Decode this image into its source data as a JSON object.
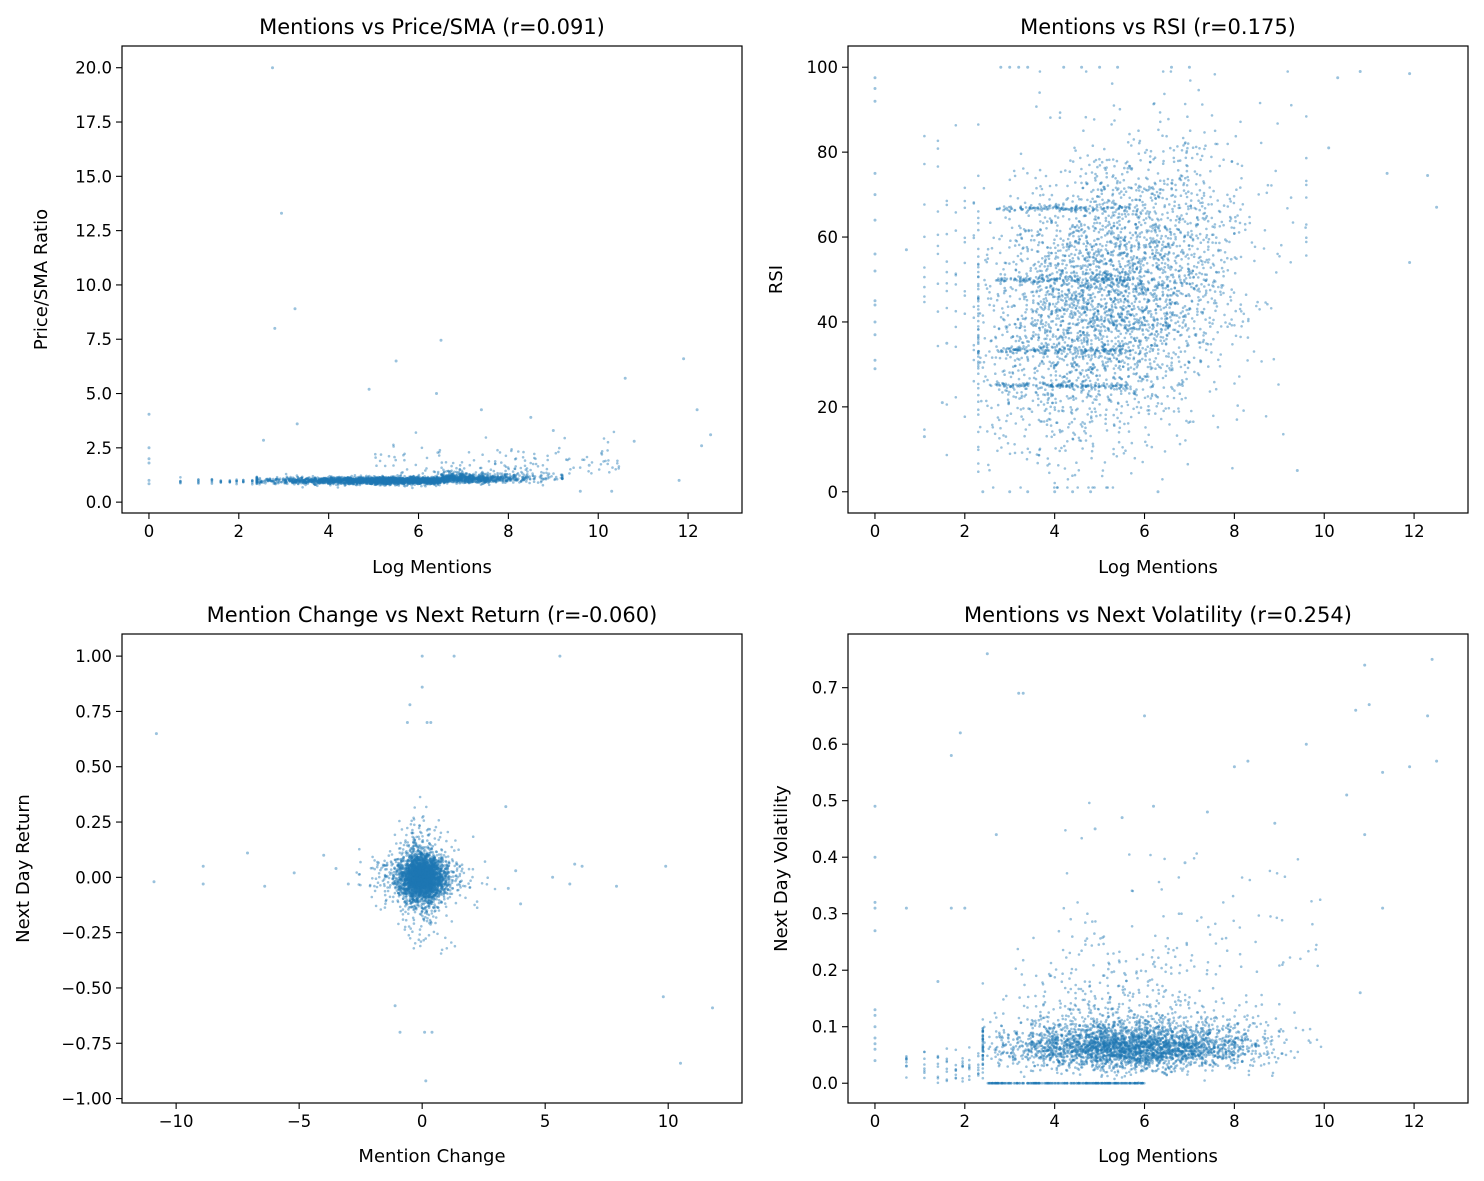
{
  "chart_data": [
    {
      "type": "scatter",
      "title": "Mentions vs Price/SMA (r=0.091)",
      "xlabel": "Log Mentions",
      "ylabel": "Price/SMA Ratio",
      "xlim": [
        -0.6,
        13.2
      ],
      "ylim": [
        -0.5,
        21.0
      ],
      "xticks": [
        0,
        2,
        4,
        6,
        8,
        10,
        12
      ],
      "yticks": [
        0.0,
        2.5,
        5.0,
        7.5,
        10.0,
        12.5,
        15.0,
        17.5,
        20.0
      ],
      "ytick_labels": [
        "0.0",
        "2.5",
        "5.0",
        "7.5",
        "10.0",
        "12.5",
        "15.0",
        "17.5",
        "20.0"
      ],
      "grid": false,
      "marker_color": "#1f77b4",
      "points": [
        [
          0,
          4.05
        ],
        [
          0,
          2.5
        ],
        [
          0,
          2.0
        ],
        [
          0,
          1.8
        ],
        [
          0,
          1.0
        ],
        [
          0,
          0.85
        ],
        [
          2.75,
          20.0
        ],
        [
          2.95,
          13.3
        ],
        [
          3.25,
          8.9
        ],
        [
          2.8,
          8.0
        ],
        [
          5.5,
          6.5
        ],
        [
          6.5,
          7.45
        ],
        [
          4.9,
          5.2
        ],
        [
          6.4,
          5.0
        ],
        [
          3.3,
          3.6
        ],
        [
          2.55,
          2.85
        ],
        [
          7.4,
          4.25
        ],
        [
          8.5,
          3.9
        ],
        [
          9.0,
          3.3
        ],
        [
          10.6,
          5.7
        ],
        [
          11.9,
          6.6
        ],
        [
          12.2,
          4.25
        ],
        [
          12.5,
          3.1
        ],
        [
          12.3,
          2.6
        ],
        [
          10.8,
          2.8
        ],
        [
          11.8,
          1.0
        ],
        [
          10.3,
          0.5
        ],
        [
          9.6,
          0.5
        ],
        [
          8.9,
          1.3
        ],
        [
          9.8,
          1.7
        ]
      ]
    },
    {
      "type": "scatter",
      "title": "Mentions vs RSI (r=0.175)",
      "xlabel": "Log Mentions",
      "ylabel": "RSI",
      "xlim": [
        -0.6,
        13.2
      ],
      "ylim": [
        -5,
        105
      ],
      "xticks": [
        0,
        2,
        4,
        6,
        8,
        10,
        12
      ],
      "yticks": [
        0,
        20,
        40,
        60,
        80,
        100
      ],
      "ytick_labels": [
        "0",
        "20",
        "40",
        "60",
        "80",
        "100"
      ],
      "grid": false,
      "marker_color": "#1f77b4",
      "points": [
        [
          0,
          97.5
        ],
        [
          0,
          95
        ],
        [
          0,
          92
        ],
        [
          0,
          75
        ],
        [
          0,
          70
        ],
        [
          0,
          64
        ],
        [
          0,
          56
        ],
        [
          0,
          52
        ],
        [
          0,
          45
        ],
        [
          0,
          44
        ],
        [
          0,
          40
        ],
        [
          0,
          37
        ],
        [
          0,
          31
        ],
        [
          0,
          29
        ],
        [
          2.8,
          100
        ],
        [
          3.0,
          100
        ],
        [
          3.2,
          100
        ],
        [
          3.4,
          100
        ],
        [
          4.2,
          100
        ],
        [
          4.6,
          100
        ],
        [
          5.0,
          100
        ],
        [
          5.4,
          100
        ],
        [
          6.6,
          100
        ],
        [
          7.0,
          100
        ],
        [
          3.0,
          0
        ],
        [
          3.4,
          0
        ],
        [
          4.0,
          0
        ],
        [
          4.4,
          0
        ],
        [
          4.8,
          0
        ],
        [
          2.4,
          0
        ],
        [
          6.3,
          0
        ],
        [
          9.4,
          5
        ],
        [
          10.1,
          81
        ],
        [
          11.9,
          98.5
        ],
        [
          12.5,
          67
        ],
        [
          12.3,
          74.5
        ],
        [
          11.4,
          75
        ],
        [
          10.8,
          99
        ],
        [
          10.3,
          97.5
        ],
        [
          11.9,
          54
        ],
        [
          1.6,
          35
        ],
        [
          1.1,
          13
        ],
        [
          1.5,
          21
        ],
        [
          0.7,
          57
        ]
      ]
    },
    {
      "type": "scatter",
      "title": "Mention Change vs Next Return (r=-0.060)",
      "xlabel": "Mention Change",
      "ylabel": "Next Day Return",
      "xlim": [
        -12.2,
        13.0
      ],
      "ylim": [
        -1.02,
        1.1
      ],
      "xticks": [
        -10,
        -5,
        0,
        5,
        10
      ],
      "xtick_labels": [
        "−10",
        "−5",
        "0",
        "5",
        "10"
      ],
      "yticks": [
        -1.0,
        -0.75,
        -0.5,
        -0.25,
        0.0,
        0.25,
        0.5,
        0.75,
        1.0
      ],
      "ytick_labels": [
        "−1.00",
        "−0.75",
        "−0.50",
        "−0.25",
        "0.00",
        "0.25",
        "0.50",
        "0.75",
        "1.00"
      ],
      "grid": false,
      "marker_color": "#1f77b4",
      "points": [
        [
          -10.8,
          0.65
        ],
        [
          -10.9,
          -0.02
        ],
        [
          -8.9,
          0.05
        ],
        [
          -8.9,
          -0.03
        ],
        [
          -7.1,
          0.11
        ],
        [
          -6.4,
          -0.04
        ],
        [
          -5.2,
          0.02
        ],
        [
          -4.0,
          0.1
        ],
        [
          -3.5,
          0.04
        ],
        [
          -3.0,
          -0.03
        ],
        [
          -1.1,
          -0.58
        ],
        [
          -0.9,
          -0.7
        ],
        [
          0.1,
          -0.7
        ],
        [
          0.4,
          -0.7
        ],
        [
          0.15,
          -0.92
        ],
        [
          0.0,
          1.0
        ],
        [
          1.3,
          1.0
        ],
        [
          5.6,
          1.0
        ],
        [
          0.0,
          0.86
        ],
        [
          -0.5,
          0.78
        ],
        [
          -0.6,
          0.7
        ],
        [
          0.2,
          0.7
        ],
        [
          0.35,
          0.7
        ],
        [
          6.2,
          0.06
        ],
        [
          6.5,
          0.05
        ],
        [
          5.3,
          0.0
        ],
        [
          6.0,
          -0.03
        ],
        [
          7.9,
          -0.04
        ],
        [
          9.9,
          0.05
        ],
        [
          9.8,
          -0.54
        ],
        [
          10.5,
          -0.84
        ],
        [
          11.8,
          -0.59
        ],
        [
          3.8,
          0.03
        ],
        [
          3.5,
          -0.05
        ],
        [
          4.0,
          -0.12
        ],
        [
          3.4,
          0.32
        ]
      ]
    },
    {
      "type": "scatter",
      "title": "Mentions vs Next Volatility (r=0.254)",
      "xlabel": "Log Mentions",
      "ylabel": "Next Day Volatility",
      "xlim": [
        -0.6,
        13.2
      ],
      "ylim": [
        -0.035,
        0.795
      ],
      "xticks": [
        0,
        2,
        4,
        6,
        8,
        10,
        12
      ],
      "yticks": [
        0.0,
        0.1,
        0.2,
        0.3,
        0.4,
        0.5,
        0.6,
        0.7
      ],
      "ytick_labels": [
        "0.0",
        "0.1",
        "0.2",
        "0.3",
        "0.4",
        "0.5",
        "0.6",
        "0.7"
      ],
      "grid": false,
      "marker_color": "#1f77b4",
      "points": [
        [
          0,
          0.49
        ],
        [
          0,
          0.4
        ],
        [
          0,
          0.32
        ],
        [
          0,
          0.31
        ],
        [
          0,
          0.27
        ],
        [
          0,
          0.13
        ],
        [
          0,
          0.12
        ],
        [
          0,
          0.1
        ],
        [
          0,
          0.08
        ],
        [
          0,
          0.07
        ],
        [
          0,
          0.06
        ],
        [
          0,
          0.04
        ],
        [
          0.7,
          0.31
        ],
        [
          0.7,
          0.03
        ],
        [
          1.4,
          0.18
        ],
        [
          1.7,
          0.58
        ],
        [
          1.9,
          0.62
        ],
        [
          1.7,
          0.31
        ],
        [
          2.0,
          0.31
        ],
        [
          2.5,
          0.76
        ],
        [
          3.2,
          0.69
        ],
        [
          3.3,
          0.69
        ],
        [
          2.7,
          0.44
        ],
        [
          6.0,
          0.65
        ],
        [
          10.7,
          0.66
        ],
        [
          10.9,
          0.74
        ],
        [
          11.0,
          0.67
        ],
        [
          12.4,
          0.75
        ],
        [
          12.5,
          0.57
        ],
        [
          12.3,
          0.65
        ],
        [
          11.9,
          0.56
        ],
        [
          11.3,
          0.55
        ],
        [
          10.9,
          0.44
        ],
        [
          10.5,
          0.51
        ],
        [
          9.6,
          0.6
        ],
        [
          8.9,
          0.46
        ],
        [
          8.0,
          0.56
        ],
        [
          8.3,
          0.57
        ],
        [
          7.4,
          0.48
        ],
        [
          6.9,
          0.39
        ],
        [
          5.5,
          0.47
        ],
        [
          4.9,
          0.45
        ],
        [
          6.2,
          0.49
        ],
        [
          11.3,
          0.31
        ],
        [
          10.8,
          0.16
        ]
      ]
    }
  ]
}
